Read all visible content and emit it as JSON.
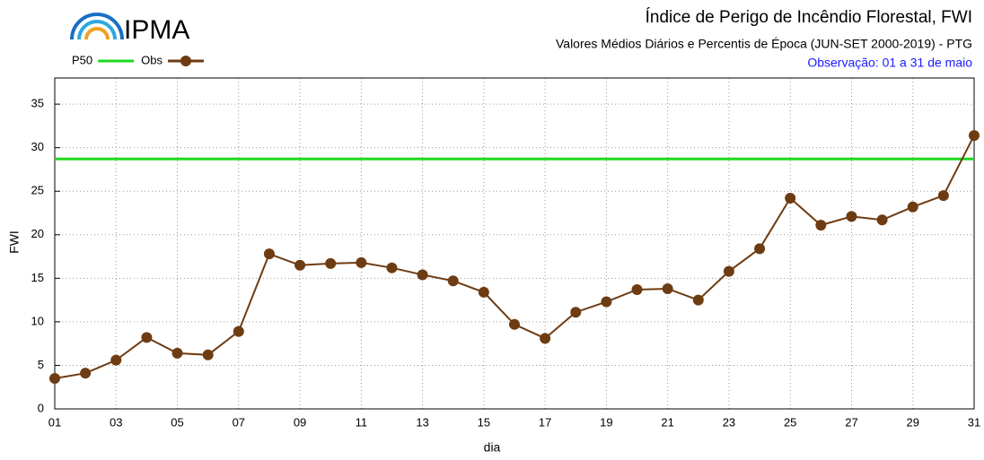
{
  "logo": "IPMA",
  "chart_data": {
    "type": "line",
    "title": "Índice de Perigo de Incêndio Florestal, FWI",
    "subtitle": "Valores Médios Diários e Percentis de Época (JUN-SET 2000-2019) - PTG",
    "subtitle2": "Observação: 01 a 31 de maio",
    "xlabel": "dia",
    "ylabel": "FWI",
    "categories": [
      "01",
      null,
      "03",
      null,
      "05",
      null,
      "07",
      null,
      "09",
      null,
      "11",
      null,
      "13",
      null,
      "15",
      null,
      "17",
      null,
      "19",
      null,
      "21",
      null,
      "23",
      null,
      "25",
      null,
      "27",
      null,
      "29",
      null,
      "31"
    ],
    "hlines": [
      {
        "name": "P50",
        "color": "#1ed81e",
        "value": 28.7
      }
    ],
    "series": [
      {
        "name": "Obs",
        "color": "#6e3c12",
        "values": [
          3.5,
          4.1,
          5.6,
          8.2,
          6.4,
          6.2,
          8.9,
          17.8,
          16.5,
          16.7,
          16.8,
          16.2,
          15.4,
          14.7,
          13.4,
          9.7,
          8.1,
          11.1,
          12.3,
          13.7,
          13.8,
          12.5,
          15.8,
          18.4,
          24.2,
          21.1,
          22.1,
          21.7,
          23.2,
          24.5,
          31.4
        ]
      }
    ],
    "ylim": [
      0,
      38
    ],
    "yticks": [
      0,
      5,
      10,
      15,
      20,
      25,
      30,
      35
    ],
    "grid": true
  }
}
